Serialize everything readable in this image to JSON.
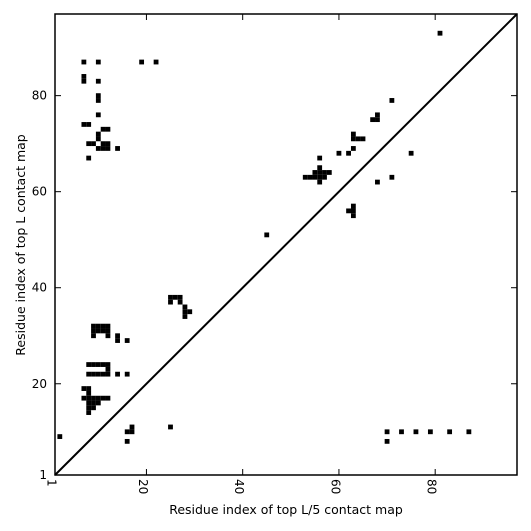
{
  "chart_data": {
    "type": "scatter",
    "xlabel": "Residue index of top L/5 contact map",
    "ylabel": "Residue index of top L contact map",
    "xlim": [
      1,
      97
    ],
    "ylim": [
      1,
      97
    ],
    "x_ticks": [
      1,
      20,
      40,
      60,
      80
    ],
    "y_ticks": [
      1,
      20,
      40,
      60,
      80
    ],
    "marker": "filled-square",
    "marker_color": "#000000",
    "diagonal_line": true,
    "grid": false,
    "legend": "none",
    "series": [
      {
        "points": [
          [
            7,
            87
          ],
          [
            7,
            84
          ],
          [
            7,
            83
          ],
          [
            10,
            87
          ],
          [
            10,
            83
          ],
          [
            19,
            87
          ],
          [
            22,
            87
          ],
          [
            10,
            80
          ],
          [
            10,
            79
          ],
          [
            10,
            76
          ],
          [
            7,
            74
          ],
          [
            8,
            74
          ],
          [
            11,
            73
          ],
          [
            12,
            73
          ],
          [
            10,
            72
          ],
          [
            10,
            71
          ],
          [
            8,
            70
          ],
          [
            9,
            70
          ],
          [
            11,
            70
          ],
          [
            12,
            70
          ],
          [
            10,
            69
          ],
          [
            11,
            69
          ],
          [
            12,
            69
          ],
          [
            8,
            67
          ],
          [
            14,
            69
          ],
          [
            9,
            32
          ],
          [
            10,
            32
          ],
          [
            11,
            32
          ],
          [
            12,
            32
          ],
          [
            9,
            31
          ],
          [
            10,
            31
          ],
          [
            11,
            31
          ],
          [
            12,
            31
          ],
          [
            9,
            30
          ],
          [
            12,
            30
          ],
          [
            14,
            30
          ],
          [
            14,
            29
          ],
          [
            16,
            29
          ],
          [
            8,
            24
          ],
          [
            9,
            24
          ],
          [
            10,
            24
          ],
          [
            11,
            24
          ],
          [
            12,
            24
          ],
          [
            12,
            23
          ],
          [
            8,
            22
          ],
          [
            9,
            22
          ],
          [
            10,
            22
          ],
          [
            11,
            22
          ],
          [
            12,
            22
          ],
          [
            14,
            22
          ],
          [
            16,
            22
          ],
          [
            7,
            19
          ],
          [
            8,
            19
          ],
          [
            8,
            18
          ],
          [
            7,
            17
          ],
          [
            8,
            17
          ],
          [
            9,
            17
          ],
          [
            10,
            17
          ],
          [
            11,
            17
          ],
          [
            12,
            17
          ],
          [
            8,
            16
          ],
          [
            9,
            16
          ],
          [
            10,
            16
          ],
          [
            8,
            15
          ],
          [
            9,
            15
          ],
          [
            8,
            14
          ],
          [
            17,
            11
          ],
          [
            16,
            10
          ],
          [
            17,
            10
          ],
          [
            16,
            8
          ],
          [
            25,
            38
          ],
          [
            26,
            38
          ],
          [
            25,
            37
          ],
          [
            27,
            38
          ],
          [
            27,
            37
          ],
          [
            28,
            36
          ],
          [
            28,
            35
          ],
          [
            29,
            35
          ],
          [
            28,
            34
          ],
          [
            25,
            11
          ],
          [
            2,
            9
          ],
          [
            45,
            51
          ],
          [
            53,
            63
          ],
          [
            54,
            63
          ],
          [
            55,
            63
          ],
          [
            56,
            63
          ],
          [
            57,
            63
          ],
          [
            55,
            64
          ],
          [
            56,
            64
          ],
          [
            57,
            64
          ],
          [
            58,
            64
          ],
          [
            56,
            65
          ],
          [
            56,
            62
          ],
          [
            56,
            67
          ],
          [
            60,
            68
          ],
          [
            62,
            68
          ],
          [
            63,
            69
          ],
          [
            63,
            72
          ],
          [
            63,
            71
          ],
          [
            64,
            71
          ],
          [
            65,
            71
          ],
          [
            67,
            75
          ],
          [
            68,
            75
          ],
          [
            68,
            76
          ],
          [
            71,
            79
          ],
          [
            75,
            68
          ],
          [
            81,
            93
          ],
          [
            62,
            56
          ],
          [
            63,
            56
          ],
          [
            63,
            57
          ],
          [
            63,
            55
          ],
          [
            68,
            62
          ],
          [
            71,
            63
          ],
          [
            70,
            10
          ],
          [
            70,
            8
          ],
          [
            73,
            10
          ],
          [
            76,
            10
          ],
          [
            79,
            10
          ],
          [
            83,
            10
          ],
          [
            87,
            10
          ]
        ]
      }
    ]
  }
}
